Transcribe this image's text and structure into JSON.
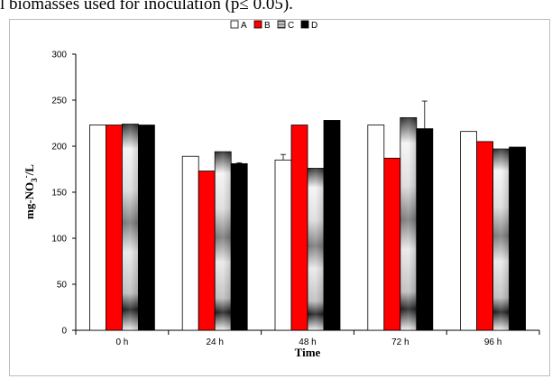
{
  "caption": "l biomasses used for inoculation (p≤ 0.05).",
  "chart_data": {
    "type": "bar",
    "categories": [
      "0 h",
      "24 h",
      "48 h",
      "72 h",
      "96 h"
    ],
    "series": [
      {
        "name": "A",
        "values": [
          223,
          189,
          185,
          223,
          216
        ],
        "errors": [
          0,
          0,
          6,
          0,
          0
        ],
        "color": "#ffffff",
        "style": "white"
      },
      {
        "name": "B",
        "values": [
          223,
          173,
          223,
          187,
          205
        ],
        "errors": [
          0,
          0,
          0,
          0,
          0
        ],
        "color": "#ff0000",
        "style": "red"
      },
      {
        "name": "C",
        "values": [
          224,
          194,
          176,
          231,
          197
        ],
        "errors": [
          0,
          0,
          0,
          0,
          0
        ],
        "color": "#9a9a9a",
        "style": "gradient"
      },
      {
        "name": "D",
        "values": [
          223,
          181,
          228,
          219,
          199
        ],
        "errors": [
          0,
          1,
          0,
          30,
          0
        ],
        "color": "#000000",
        "style": "black"
      }
    ],
    "ylabel": "mg-NO3-/L",
    "ylabel_main": "mg-NO",
    "ylabel_sub": "3",
    "ylabel_sup": "-",
    "ylabel_end": "/L",
    "xlabel": "Time",
    "ylim": [
      0,
      300
    ],
    "yticks": [
      0,
      50,
      100,
      150,
      200,
      250,
      300
    ],
    "legend_position": "top-center",
    "grid": false
  }
}
